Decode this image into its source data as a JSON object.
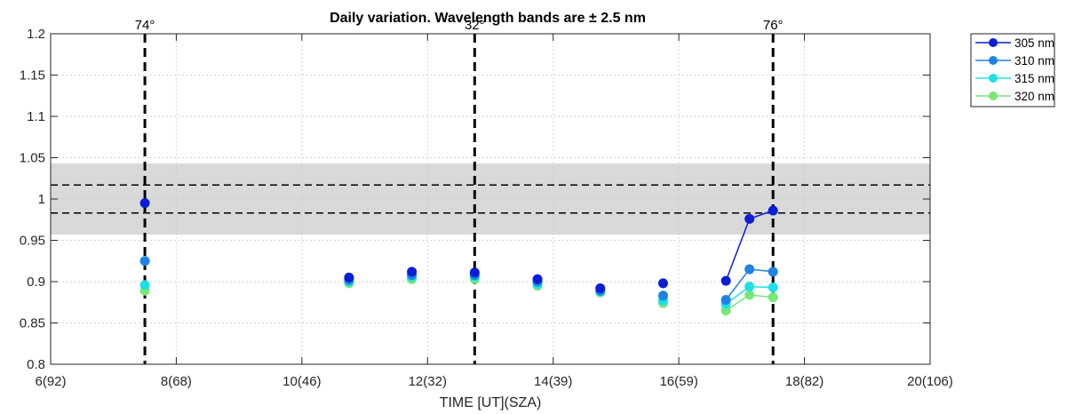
{
  "chart_data": {
    "type": "line",
    "title": "Daily variation. Wavelength bands are ± 2.5 nm",
    "xlabel": "TIME [UT](SZA)",
    "ylabel": "",
    "xlim": [
      6,
      20
    ],
    "ylim": [
      0.8,
      1.2
    ],
    "grid": true,
    "legend_position": "outside-top-right",
    "x_ticks": [
      6,
      8,
      10,
      12,
      14,
      16,
      18,
      20
    ],
    "x_tick_labels": [
      "6(92)",
      "8(68)",
      "10(46)",
      "12(32)",
      "14(39)",
      "16(59)",
      "18(82)",
      "20(106)"
    ],
    "y_ticks": [
      0.8,
      0.85,
      0.9,
      0.95,
      1.0,
      1.05,
      1.1,
      1.15,
      1.2
    ],
    "y_tick_labels": [
      "0.8",
      "0.85",
      "0.9",
      "0.95",
      "1",
      "1.05",
      "1.1",
      "1.15",
      "1.2"
    ],
    "shaded_band": {
      "y0": 0.957,
      "y1": 1.043,
      "color": "#d9d9d9"
    },
    "horizontal_dashed_lines": [
      0.983,
      1.017
    ],
    "vertical_dashed_lines": [
      {
        "x": 7.5,
        "label": "74°"
      },
      {
        "x": 12.75,
        "label": "32°"
      },
      {
        "x": 17.5,
        "label": "76°"
      }
    ],
    "series": [
      {
        "name": "305 nm",
        "color": "#0a1ed6",
        "x": [
          7.5,
          10.75,
          11.75,
          12.75,
          13.75,
          14.75,
          15.75,
          16.75,
          17.125,
          17.5
        ],
        "y": [
          0.995,
          0.905,
          0.912,
          0.911,
          0.903,
          0.892,
          0.898,
          0.901,
          0.976,
          0.986
        ]
      },
      {
        "name": "310 nm",
        "color": "#1e82e6",
        "x": [
          7.5,
          10.75,
          11.75,
          12.75,
          13.75,
          14.75,
          15.75,
          16.75,
          17.125,
          17.5
        ],
        "y": [
          0.925,
          0.902,
          0.908,
          0.908,
          0.9,
          0.889,
          0.883,
          0.878,
          0.915,
          0.912
        ]
      },
      {
        "name": "315 nm",
        "color": "#1ee0e6",
        "x": [
          7.5,
          10.75,
          11.75,
          12.75,
          13.75,
          14.75,
          15.75,
          16.75,
          17.125,
          17.5
        ],
        "y": [
          0.896,
          0.9,
          0.906,
          0.906,
          0.897,
          0.888,
          0.877,
          0.873,
          0.894,
          0.893
        ]
      },
      {
        "name": "320 nm",
        "color": "#78e678",
        "x": [
          7.5,
          10.75,
          11.75,
          12.75,
          13.75,
          14.75,
          15.75,
          16.75,
          17.125,
          17.5
        ],
        "y": [
          0.889,
          0.898,
          0.903,
          0.903,
          0.895,
          0.887,
          0.874,
          0.865,
          0.884,
          0.881
        ]
      }
    ]
  }
}
